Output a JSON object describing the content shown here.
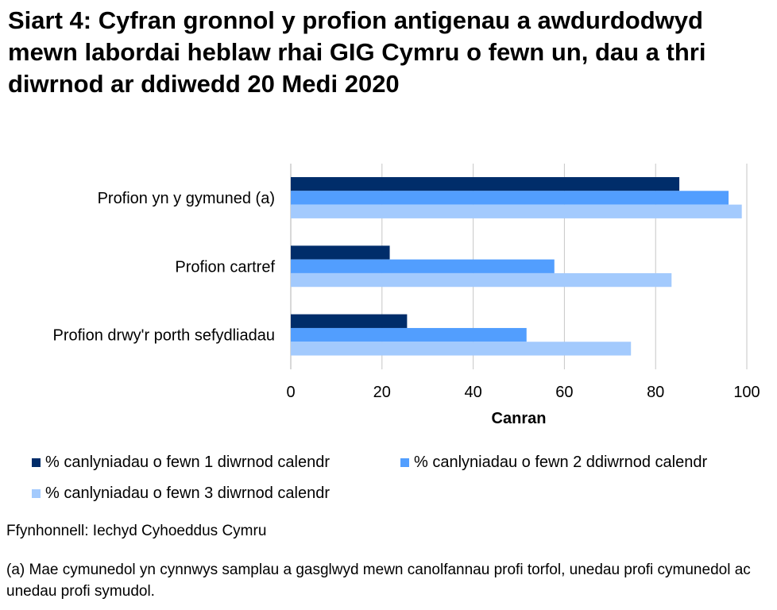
{
  "chart_data": {
    "type": "bar",
    "orientation": "horizontal",
    "title": "Siart 4: Cyfran gronnol y profion antigenau a awdurdodwyd mewn labordai heblaw rhai GIG Cymru o fewn un, dau a thri diwrnod ar ddiwedd 20 Medi 2020",
    "categories": [
      "Profion yn y gymuned (a)",
      "Profion cartref",
      "Profion drwy'r porth sefydliadau"
    ],
    "series": [
      {
        "name": "% canlyniadau o fewn 1 diwrnod calendr",
        "color": "#002d6a",
        "values": [
          85.2,
          21.7,
          25.5
        ]
      },
      {
        "name": "% canlyniadau o fewn 2 ddiwrnod calendr",
        "color": "#529efe",
        "values": [
          96.0,
          57.8,
          51.7
        ]
      },
      {
        "name": "% canlyniadau o fewn 3 diwrnod calendr",
        "color": "#a3cafd",
        "values": [
          98.9,
          83.5,
          74.6
        ]
      }
    ],
    "xlabel": "Canran",
    "xlim": [
      0,
      100
    ],
    "xticks": [
      "0",
      "20",
      "40",
      "60",
      "80",
      "100"
    ],
    "grid": true,
    "legend": "bottom"
  },
  "source": "Ffynhonnell: Iechyd Cyhoeddus Cymru",
  "note": "(a) Mae cymunedol yn cynnwys samplau a gasglwyd mewn canolfannau profi torfol, unedau profi cymunedol ac unedau profi symudol."
}
